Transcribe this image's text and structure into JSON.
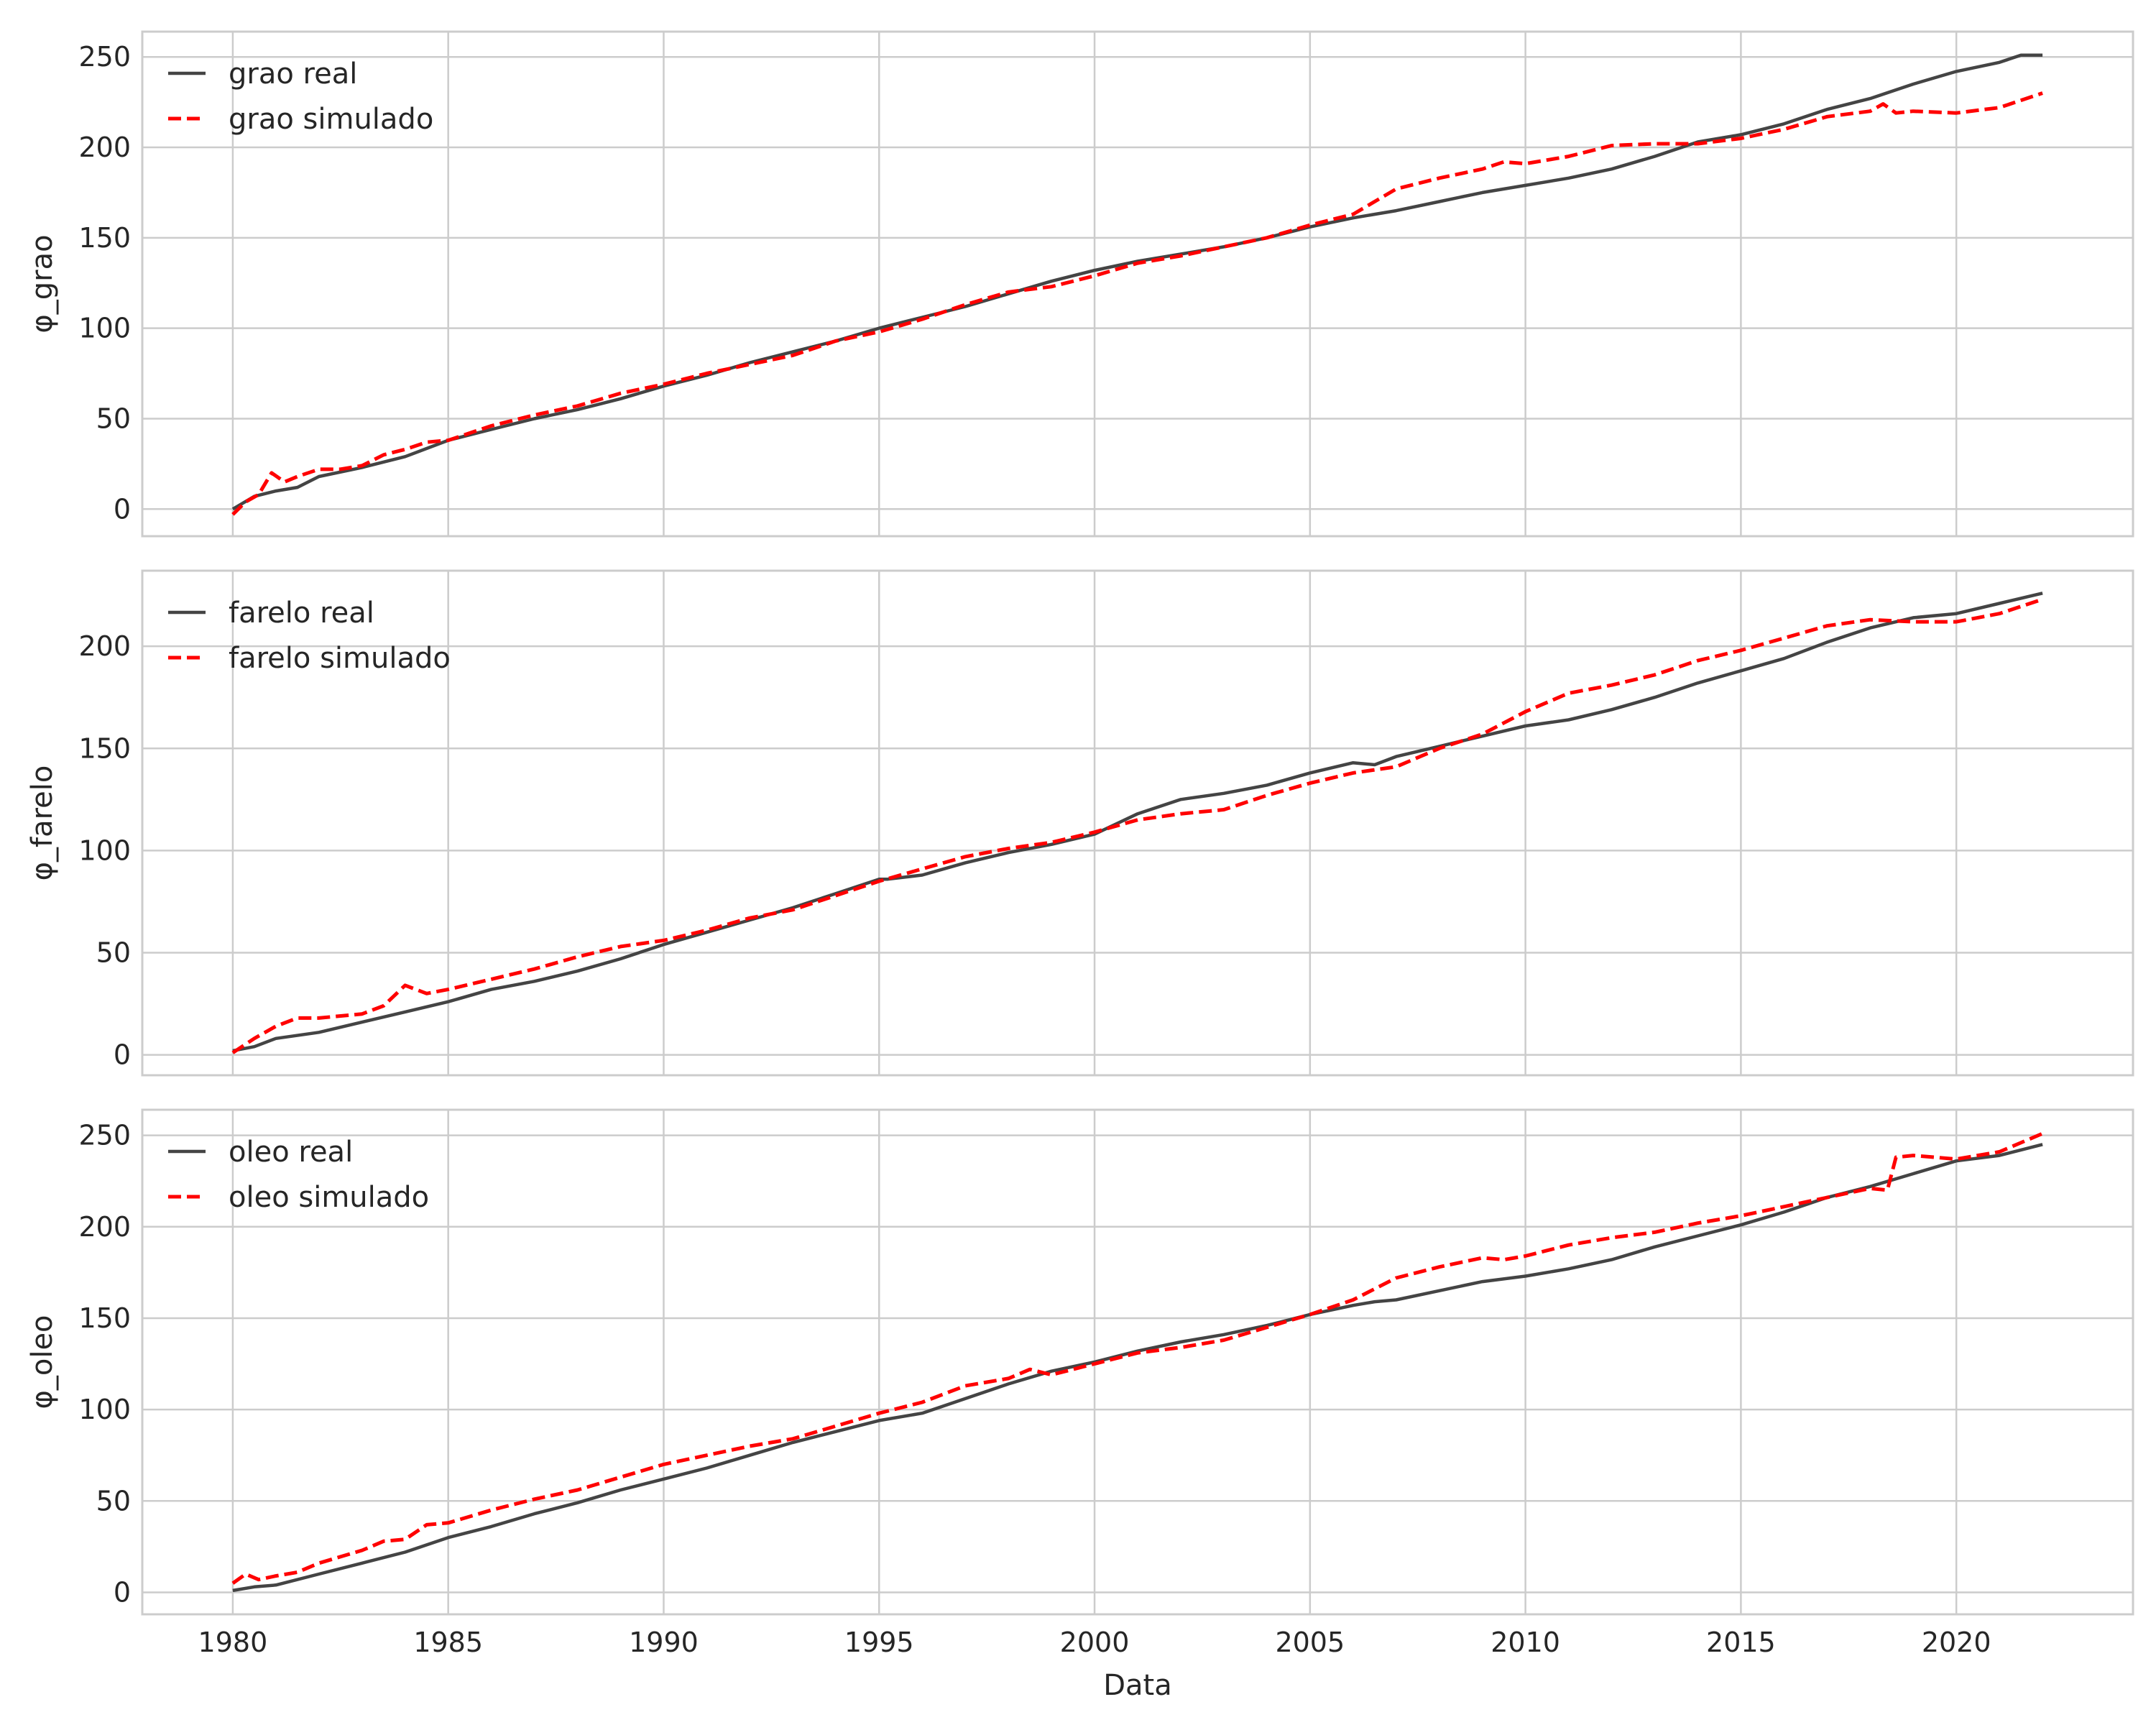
{
  "chart_data": [
    {
      "type": "line",
      "ylabel": "φ_grao",
      "xlabel": "",
      "xlim": [
        1977.9,
        2024.1
      ],
      "ylim": [
        -15,
        264
      ],
      "yticks": [
        0,
        50,
        100,
        150,
        200,
        250
      ],
      "xticks": [
        1980,
        1985,
        1990,
        1995,
        2000,
        2005,
        2010,
        2015,
        2020
      ],
      "legend_position": "top-left",
      "grid": true,
      "series": [
        {
          "name": "grao real",
          "color": "#444444",
          "style": "solid",
          "x": [
            1980.0,
            1980.5,
            1981.0,
            1981.5,
            1982.0,
            1983.0,
            1984.0,
            1985.0,
            1986.0,
            1987.0,
            1988.0,
            1989.0,
            1990.0,
            1991.0,
            1992.0,
            1993.0,
            1994.0,
            1995.0,
            1996.0,
            1997.0,
            1998.0,
            1999.0,
            2000.0,
            2001.0,
            2002.0,
            2003.0,
            2004.0,
            2005.0,
            2006.0,
            2006.5,
            2007.0,
            2008.0,
            2009.0,
            2010.0,
            2011.0,
            2012.0,
            2013.0,
            2014.0,
            2015.0,
            2016.0,
            2017.0,
            2018.0,
            2019.0,
            2020.0,
            2021.0,
            2021.5,
            2022.0
          ],
          "y": [
            0,
            7,
            10,
            12,
            18,
            23,
            29,
            38,
            44,
            50,
            55,
            61,
            68,
            74,
            81,
            87,
            93,
            100,
            106,
            112,
            119,
            126,
            132,
            137,
            141,
            145,
            150,
            156,
            161,
            163,
            165,
            170,
            175,
            179,
            183,
            188,
            195,
            203,
            207,
            213,
            221,
            227,
            235,
            242,
            247,
            251,
            251
          ]
        },
        {
          "name": "grao simulado",
          "color": "#ff0000",
          "style": "dashed",
          "x": [
            1980.0,
            1980.3,
            1980.6,
            1980.9,
            1981.2,
            1981.5,
            1982.0,
            1982.5,
            1983.0,
            1983.5,
            1984.0,
            1984.5,
            1985.0,
            1986.0,
            1987.0,
            1988.0,
            1989.0,
            1990.0,
            1991.0,
            1992.0,
            1993.0,
            1994.0,
            1995.0,
            1996.0,
            1997.0,
            1998.0,
            1999.0,
            2000.0,
            2001.0,
            2002.0,
            2003.0,
            2004.0,
            2005.0,
            2006.0,
            2007.0,
            2008.0,
            2009.0,
            2009.5,
            2010.0,
            2011.0,
            2012.0,
            2013.0,
            2014.0,
            2015.0,
            2016.0,
            2017.0,
            2018.0,
            2018.3,
            2018.6,
            2019.0,
            2020.0,
            2021.0,
            2022.0
          ],
          "y": [
            -3,
            4,
            8,
            20,
            15,
            18,
            22,
            22,
            24,
            30,
            33,
            37,
            38,
            46,
            52,
            57,
            64,
            69,
            75,
            80,
            85,
            93,
            98,
            105,
            113,
            120,
            123,
            129,
            136,
            140,
            145,
            150,
            157,
            163,
            177,
            183,
            188,
            192,
            191,
            195,
            201,
            202,
            202,
            205,
            210,
            217,
            220,
            224,
            219,
            220,
            219,
            222,
            230
          ]
        }
      ]
    },
    {
      "type": "line",
      "ylabel": "φ_farelo",
      "xlabel": "",
      "xlim": [
        1977.9,
        2024.1
      ],
      "ylim": [
        -10,
        237
      ],
      "yticks": [
        0,
        50,
        100,
        150,
        200
      ],
      "xticks": [
        1980,
        1985,
        1990,
        1995,
        2000,
        2005,
        2010,
        2015,
        2020
      ],
      "legend_position": "top-left",
      "grid": true,
      "series": [
        {
          "name": "farelo real",
          "color": "#444444",
          "style": "solid",
          "x": [
            1980.0,
            1980.5,
            1981.0,
            1982.0,
            1983.0,
            1984.0,
            1985.0,
            1986.0,
            1987.0,
            1988.0,
            1989.0,
            1990.0,
            1991.0,
            1992.0,
            1993.0,
            1994.0,
            1995.0,
            1995.2,
            1996.0,
            1997.0,
            1998.0,
            1999.0,
            2000.0,
            2001.0,
            2002.0,
            2003.0,
            2004.0,
            2005.0,
            2006.0,
            2006.5,
            2007.0,
            2008.0,
            2009.0,
            2010.0,
            2011.0,
            2012.0,
            2013.0,
            2014.0,
            2015.0,
            2016.0,
            2017.0,
            2018.0,
            2019.0,
            2020.0,
            2021.0,
            2022.0
          ],
          "y": [
            2,
            4,
            8,
            11,
            16,
            21,
            26,
            32,
            36,
            41,
            47,
            54,
            60,
            66,
            72,
            79,
            86,
            86,
            88,
            94,
            99,
            103,
            108,
            118,
            125,
            128,
            132,
            138,
            143,
            142,
            146,
            151,
            156,
            161,
            164,
            169,
            175,
            182,
            188,
            194,
            202,
            209,
            214,
            216,
            221,
            226
          ]
        },
        {
          "name": "farelo simulado",
          "color": "#ff0000",
          "style": "dashed",
          "x": [
            1980.0,
            1980.5,
            1981.0,
            1981.5,
            1982.0,
            1983.0,
            1983.5,
            1984.0,
            1984.5,
            1985.0,
            1986.0,
            1987.0,
            1988.0,
            1989.0,
            1990.0,
            1991.0,
            1992.0,
            1993.0,
            1994.0,
            1995.0,
            1996.0,
            1997.0,
            1998.0,
            1999.0,
            2000.0,
            2001.0,
            2002.0,
            2003.0,
            2004.0,
            2005.0,
            2006.0,
            2007.0,
            2008.0,
            2009.0,
            2010.0,
            2011.0,
            2012.0,
            2013.0,
            2014.0,
            2015.0,
            2016.0,
            2017.0,
            2018.0,
            2019.0,
            2020.0,
            2021.0,
            2022.0
          ],
          "y": [
            1,
            8,
            14,
            18,
            18,
            20,
            24,
            34,
            30,
            32,
            37,
            42,
            48,
            53,
            56,
            61,
            67,
            71,
            78,
            85,
            91,
            97,
            101,
            104,
            109,
            115,
            118,
            120,
            127,
            133,
            138,
            141,
            150,
            157,
            168,
            177,
            181,
            186,
            193,
            198,
            204,
            210,
            213,
            212,
            212,
            216,
            223
          ]
        }
      ]
    },
    {
      "type": "line",
      "ylabel": "φ_oleo",
      "xlabel": "Data",
      "xlim": [
        1977.9,
        2024.1
      ],
      "ylim": [
        -12,
        264
      ],
      "yticks": [
        0,
        50,
        100,
        150,
        200,
        250
      ],
      "xticks": [
        1980,
        1985,
        1990,
        1995,
        2000,
        2005,
        2010,
        2015,
        2020
      ],
      "xticklabels": [
        "1980",
        "1985",
        "1990",
        "1995",
        "2000",
        "2005",
        "2010",
        "2015",
        "2020"
      ],
      "legend_position": "top-left",
      "grid": true,
      "series": [
        {
          "name": "oleo real",
          "color": "#444444",
          "style": "solid",
          "x": [
            1980.0,
            1980.5,
            1981.0,
            1982.0,
            1983.0,
            1984.0,
            1985.0,
            1986.0,
            1987.0,
            1988.0,
            1989.0,
            1990.0,
            1991.0,
            1992.0,
            1993.0,
            1994.0,
            1995.0,
            1996.0,
            1997.0,
            1998.0,
            1999.0,
            2000.0,
            2001.0,
            2002.0,
            2003.0,
            2004.0,
            2005.0,
            2006.0,
            2006.5,
            2007.0,
            2008.0,
            2009.0,
            2010.0,
            2011.0,
            2012.0,
            2013.0,
            2014.0,
            2015.0,
            2016.0,
            2017.0,
            2018.0,
            2019.0,
            2020.0,
            2021.0,
            2022.0
          ],
          "y": [
            1,
            3,
            4,
            10,
            16,
            22,
            30,
            36,
            43,
            49,
            56,
            62,
            68,
            75,
            82,
            88,
            94,
            98,
            106,
            114,
            121,
            126,
            132,
            137,
            141,
            146,
            152,
            157,
            159,
            160,
            165,
            170,
            173,
            177,
            182,
            189,
            195,
            201,
            208,
            216,
            222,
            229,
            236,
            239,
            245
          ]
        },
        {
          "name": "oleo simulado",
          "color": "#ff0000",
          "style": "dashed",
          "x": [
            1980.0,
            1980.3,
            1980.6,
            1981.0,
            1981.5,
            1982.0,
            1983.0,
            1983.5,
            1984.0,
            1984.5,
            1985.0,
            1986.0,
            1987.0,
            1988.0,
            1989.0,
            1990.0,
            1991.0,
            1992.0,
            1993.0,
            1994.0,
            1995.0,
            1996.0,
            1997.0,
            1998.0,
            1998.5,
            1999.0,
            2000.0,
            2001.0,
            2002.0,
            2003.0,
            2004.0,
            2005.0,
            2006.0,
            2007.0,
            2008.0,
            2009.0,
            2009.5,
            2010.0,
            2011.0,
            2012.0,
            2013.0,
            2014.0,
            2015.0,
            2016.0,
            2017.0,
            2018.0,
            2018.4,
            2018.6,
            2019.0,
            2019.5,
            2020.0,
            2021.0,
            2022.0
          ],
          "y": [
            5,
            10,
            7,
            9,
            11,
            16,
            23,
            28,
            29,
            37,
            38,
            45,
            51,
            56,
            63,
            70,
            75,
            80,
            84,
            91,
            98,
            104,
            113,
            117,
            122,
            119,
            125,
            131,
            134,
            138,
            145,
            152,
            160,
            172,
            178,
            183,
            182,
            184,
            190,
            194,
            197,
            202,
            206,
            211,
            216,
            221,
            220,
            238,
            239,
            238,
            237,
            241,
            251
          ]
        }
      ]
    }
  ]
}
